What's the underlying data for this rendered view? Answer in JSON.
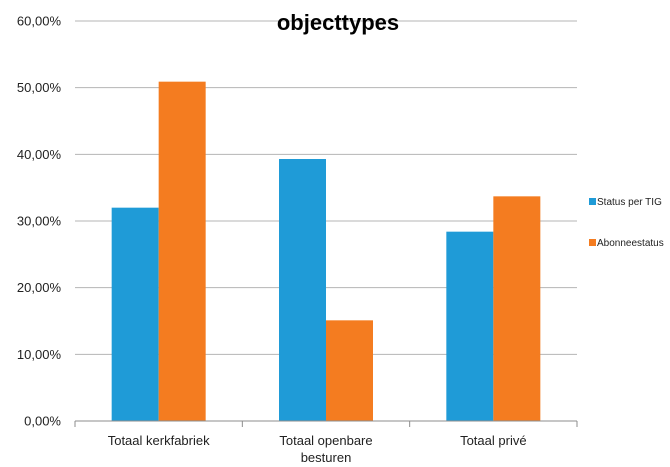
{
  "chart_data": {
    "type": "bar",
    "title": "objecttypes",
    "categories": [
      "Totaal kerkfabriek",
      "Totaal openbare besturen",
      "Totaal privé"
    ],
    "series": [
      {
        "name": "Status per TIG",
        "color": "#1f9bd7",
        "values": [
          32.0,
          39.3,
          28.4
        ]
      },
      {
        "name": "Abonneestatus",
        "color": "#f47c20",
        "values": [
          50.9,
          15.1,
          33.7
        ]
      }
    ],
    "ylim": [
      0,
      60
    ],
    "yticks": [
      "0,00%",
      "10,00%",
      "20,00%",
      "30,00%",
      "40,00%",
      "50,00%",
      "60,00%"
    ],
    "grid": true,
    "legend": "right"
  }
}
